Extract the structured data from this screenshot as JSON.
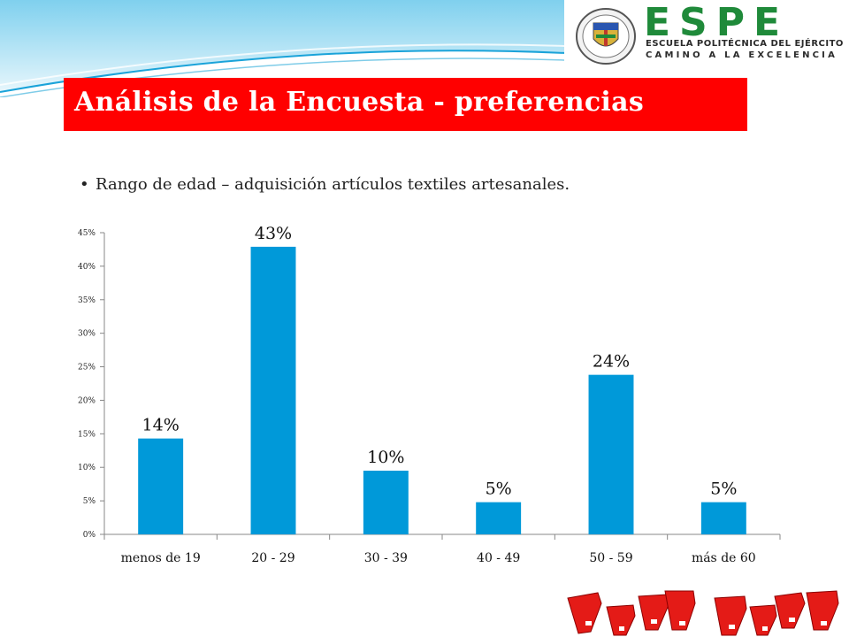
{
  "header": {
    "logo_letters": "ESPE",
    "logo_line1": "ESCUELA POLITÉCNICA DEL EJÉRCITO",
    "logo_line2": "CAMINO A LA EXCELENCIA"
  },
  "title": "Análisis de la Encuesta - preferencias",
  "bullet": "Rango de edad – adquisición artículos textiles artesanales.",
  "colors": {
    "title_bar": "#ff0000",
    "bar": "#0099d9",
    "logo_green": "#1f8a3a"
  },
  "icons": [
    "university-seal-icon",
    "decorative-red-shield-icon"
  ],
  "chart_data": {
    "type": "bar",
    "categories": [
      "menos de 19",
      "20 - 29",
      "30 - 39",
      "40 - 49",
      "50 - 59",
      "más de 60"
    ],
    "values": [
      14.3,
      42.9,
      9.5,
      4.8,
      23.8,
      4.8
    ],
    "data_labels": [
      "14%",
      "43%",
      "10%",
      "5%",
      "24%",
      "5%"
    ],
    "ylim": [
      0,
      45
    ],
    "yticks": [
      0,
      5,
      10,
      15,
      20,
      25,
      30,
      35,
      40,
      45
    ],
    "ytick_labels": [
      "0%",
      "5%",
      "10%",
      "15%",
      "20%",
      "25%",
      "30%",
      "35%",
      "40%",
      "45%"
    ],
    "grid": false,
    "legend": false
  }
}
